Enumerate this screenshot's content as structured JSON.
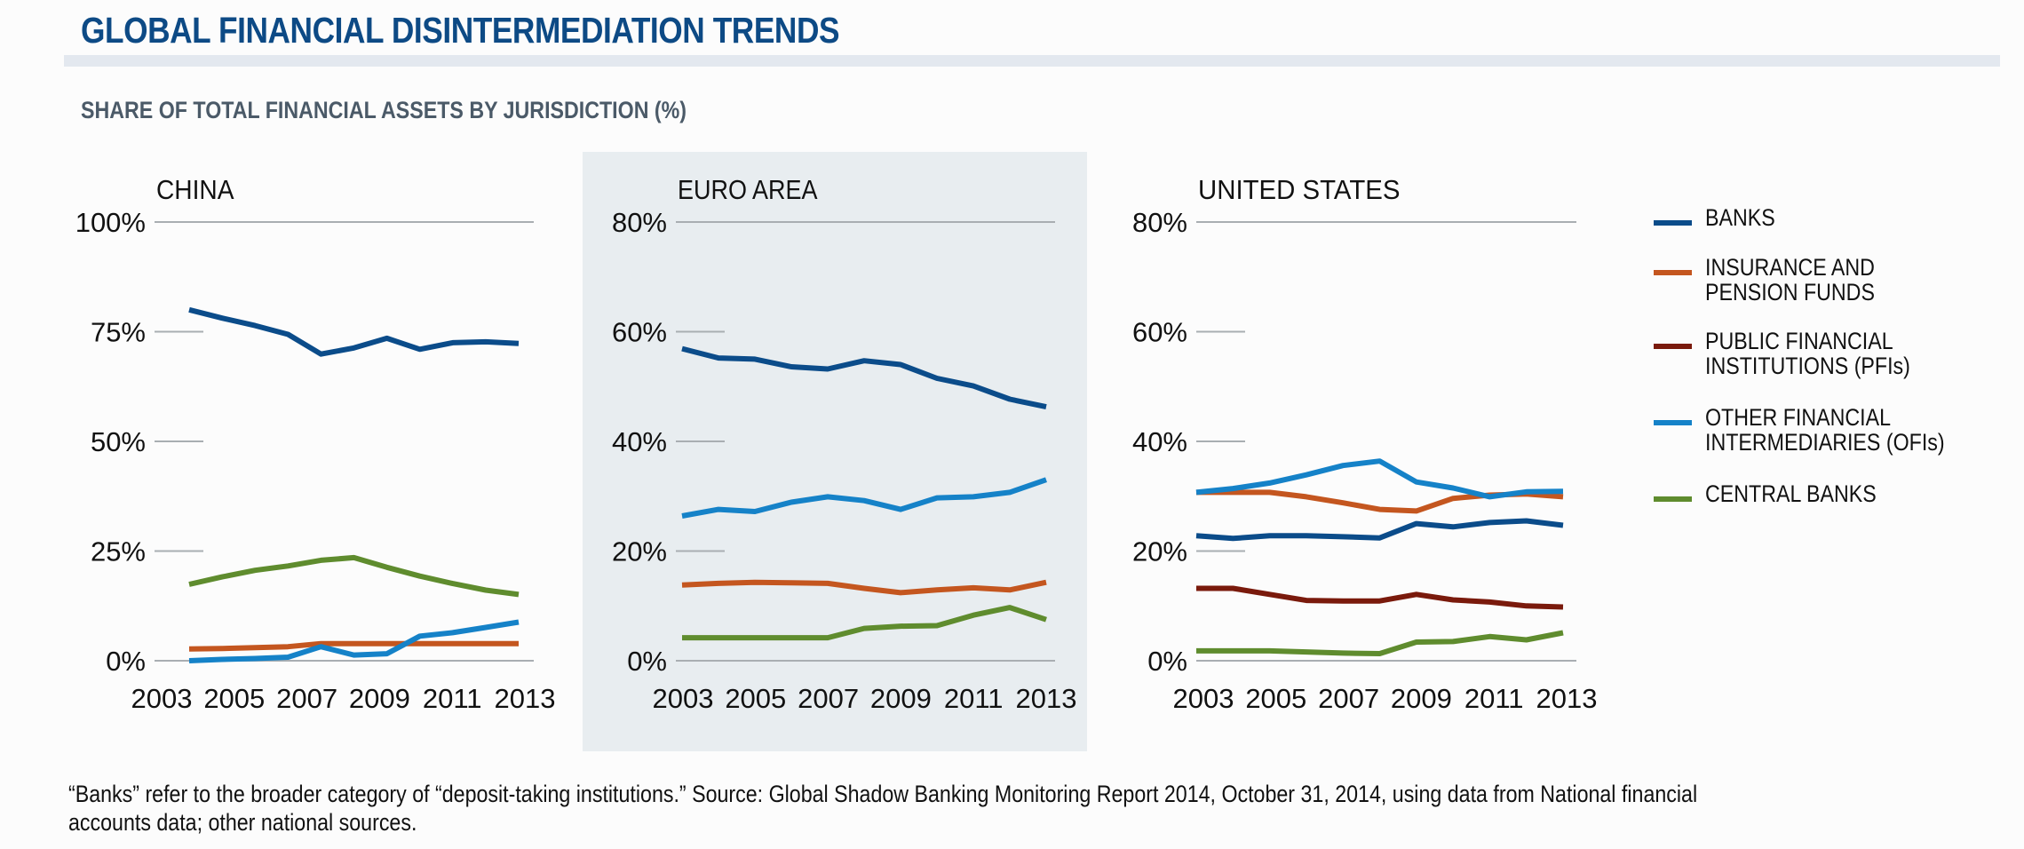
{
  "header": {
    "title": "GLOBAL FINANCIAL DISINTERMEDIATION TRENDS",
    "subtitle": "SHARE OF TOTAL FINANCIAL ASSETS BY JURISDICTION (%)"
  },
  "colors": {
    "banks": "#0b4c8a",
    "insurance": "#c4561f",
    "pfi": "#7a1a0c",
    "ofi": "#1582c8",
    "central": "#5f8c2e",
    "title": "#0d4a85",
    "gridline": "#a9aeb2",
    "euro_panel_bg": "#e8edf0"
  },
  "legend": [
    {
      "key": "banks",
      "lines": [
        "BANKS"
      ]
    },
    {
      "key": "insurance",
      "lines": [
        "INSURANCE AND",
        "PENSION FUNDS"
      ]
    },
    {
      "key": "pfi",
      "lines": [
        "PUBLIC FINANCIAL",
        "INSTITUTIONS (PFIs)"
      ]
    },
    {
      "key": "ofi",
      "lines": [
        "OTHER FINANCIAL",
        "INTERMEDIARIES (OFIs)"
      ]
    },
    {
      "key": "central",
      "lines": [
        "CENTRAL BANKS"
      ]
    }
  ],
  "footnote": {
    "line1": "“Banks” refer to the broader category of “deposit-taking institutions.” Source: Global Shadow Banking Monitoring Report 2014, October 31, 2014, using data from National financial",
    "line2": "accounts data; other national sources."
  },
  "chart_data": [
    {
      "type": "line",
      "title": "CHINA",
      "xlabel": "",
      "ylabel": "Share of total financial assets (%)",
      "x": [
        2003,
        2004,
        2005,
        2006,
        2007,
        2008,
        2009,
        2010,
        2011,
        2012,
        2013
      ],
      "x_tick_labels": [
        "2003",
        "2005",
        "2007",
        "2009",
        "2011",
        "2013"
      ],
      "ylim": [
        0,
        100
      ],
      "y_ticks": [
        0,
        25,
        50,
        75,
        100
      ],
      "y_tick_labels": [
        "0%",
        "25%",
        "50%",
        "75%",
        "100%"
      ],
      "grid": true,
      "series": [
        {
          "name": "BANKS",
          "key": "banks",
          "values": [
            80.0,
            78.1,
            76.4,
            74.4,
            69.9,
            71.3,
            73.5,
            71.0,
            72.5,
            72.7,
            72.3
          ]
        },
        {
          "name": "INSURANCE AND PENSION FUNDS",
          "key": "insurance",
          "values": [
            2.7,
            2.8,
            3.0,
            3.2,
            3.9,
            3.9,
            3.9,
            3.9,
            3.9,
            3.9,
            3.9
          ]
        },
        {
          "name": "OTHER FINANCIAL INTERMEDIARIES (OFIs)",
          "key": "ofi",
          "values": [
            0.0,
            0.3,
            0.5,
            0.8,
            3.2,
            1.3,
            1.6,
            5.6,
            6.4,
            7.6,
            8.8
          ]
        },
        {
          "name": "CENTRAL BANKS",
          "key": "central",
          "values": [
            17.4,
            19.1,
            20.6,
            21.6,
            22.9,
            23.5,
            21.3,
            19.3,
            17.6,
            16.1,
            15.1
          ]
        }
      ]
    },
    {
      "type": "line",
      "title": "EURO AREA",
      "xlabel": "",
      "ylabel": "Share of total financial assets (%)",
      "x": [
        2003,
        2004,
        2005,
        2006,
        2007,
        2008,
        2009,
        2010,
        2011,
        2012,
        2013
      ],
      "x_tick_labels": [
        "2003",
        "2005",
        "2007",
        "2009",
        "2011",
        "2013"
      ],
      "ylim": [
        0,
        80
      ],
      "y_ticks": [
        0,
        20,
        40,
        60,
        80
      ],
      "y_tick_labels": [
        "0%",
        "20%",
        "40%",
        "60%",
        "80%"
      ],
      "grid": true,
      "series": [
        {
          "name": "BANKS",
          "key": "banks",
          "values": [
            56.9,
            55.2,
            55.0,
            53.6,
            53.2,
            54.7,
            54.0,
            51.5,
            50.1,
            47.7,
            46.3
          ]
        },
        {
          "name": "INSURANCE AND PENSION FUNDS",
          "key": "insurance",
          "values": [
            13.8,
            14.1,
            14.3,
            14.2,
            14.1,
            13.2,
            12.4,
            12.9,
            13.3,
            12.9,
            14.3
          ]
        },
        {
          "name": "OTHER FINANCIAL INTERMEDIARIES (OFIs)",
          "key": "ofi",
          "values": [
            26.4,
            27.6,
            27.2,
            28.9,
            29.9,
            29.2,
            27.6,
            29.7,
            29.9,
            30.7,
            33.0
          ]
        },
        {
          "name": "CENTRAL BANKS",
          "key": "central",
          "values": [
            4.2,
            4.2,
            4.2,
            4.2,
            4.2,
            5.9,
            6.3,
            6.4,
            8.3,
            9.7,
            7.5
          ]
        }
      ]
    },
    {
      "type": "line",
      "title": "UNITED STATES",
      "xlabel": "",
      "ylabel": "Share of total financial assets (%)",
      "x": [
        2003,
        2004,
        2005,
        2006,
        2007,
        2008,
        2009,
        2010,
        2011,
        2012,
        2013
      ],
      "x_tick_labels": [
        "2003",
        "2005",
        "2007",
        "2009",
        "2011",
        "2013"
      ],
      "ylim": [
        0,
        80
      ],
      "y_ticks": [
        0,
        20,
        40,
        60,
        80
      ],
      "y_tick_labels": [
        "0%",
        "20%",
        "40%",
        "60%",
        "80%"
      ],
      "grid": true,
      "series": [
        {
          "name": "BANKS",
          "key": "banks",
          "values": [
            22.8,
            22.3,
            22.8,
            22.8,
            22.6,
            22.4,
            25.0,
            24.4,
            25.2,
            25.5,
            24.7
          ]
        },
        {
          "name": "INSURANCE AND PENSION FUNDS",
          "key": "insurance",
          "values": [
            30.7,
            30.7,
            30.7,
            29.9,
            28.8,
            27.6,
            27.3,
            29.6,
            30.2,
            30.4,
            29.9
          ]
        },
        {
          "name": "PUBLIC FINANCIAL INSTITUTIONS (PFIs)",
          "key": "pfi",
          "values": [
            13.2,
            13.2,
            12.1,
            11.0,
            10.9,
            10.9,
            12.1,
            11.1,
            10.7,
            10.0,
            9.8
          ]
        },
        {
          "name": "OTHER FINANCIAL INTERMEDIARIES (OFIs)",
          "key": "ofi",
          "values": [
            30.7,
            31.4,
            32.4,
            33.9,
            35.6,
            36.4,
            32.6,
            31.5,
            29.9,
            30.8,
            30.9
          ]
        },
        {
          "name": "CENTRAL BANKS",
          "key": "central",
          "values": [
            1.8,
            1.8,
            1.8,
            1.6,
            1.4,
            1.3,
            3.4,
            3.5,
            4.4,
            3.8,
            5.1
          ]
        }
      ]
    }
  ]
}
